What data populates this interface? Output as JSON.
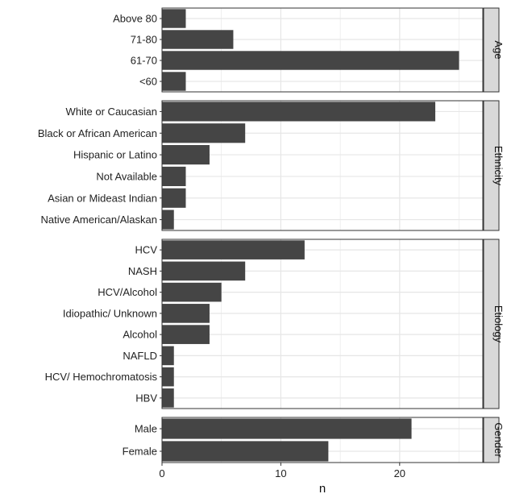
{
  "chart_data": {
    "type": "bar",
    "orientation": "horizontal",
    "xlabel": "n",
    "ylabel": "",
    "xlim": [
      0,
      27
    ],
    "x_ticks": [
      0,
      10,
      20
    ],
    "grid": true,
    "bar_color": "#454545",
    "panel_background": "#ffffff",
    "grid_color": "#e6e6e6",
    "strip_background": "#d9d9d9",
    "facets": [
      {
        "name": "Age",
        "categories": [
          "Above 80",
          "71-80",
          "61-70",
          "<60"
        ],
        "values": [
          2,
          6,
          25,
          2
        ]
      },
      {
        "name": "Ethnicity",
        "categories": [
          "White or Caucasian",
          "Black or African American",
          "Hispanic or Latino",
          "Not Available",
          "Asian or Mideast Indian",
          "Native American/Alaskan"
        ],
        "values": [
          23,
          7,
          4,
          2,
          2,
          1
        ]
      },
      {
        "name": "Etiology",
        "categories": [
          "HCV",
          "NASH",
          "HCV/Alcohol",
          "Idiopathic/ Unknown",
          "Alcohol",
          "NAFLD",
          "HCV/ Hemochromatosis",
          "HBV"
        ],
        "values": [
          12,
          7,
          5,
          4,
          4,
          1,
          1,
          1
        ]
      },
      {
        "name": "Gender",
        "categories": [
          "Male",
          "Female"
        ],
        "values": [
          21,
          14
        ]
      }
    ]
  }
}
